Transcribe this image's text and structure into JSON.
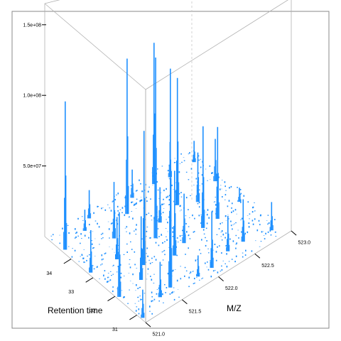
{
  "chart_data": {
    "type": "3d-spectrum",
    "title": "",
    "xlabel": "M/Z",
    "ylabel": "Retention time",
    "zlabel": "",
    "x_ticks": [
      "521.0",
      "521.5",
      "522.0",
      "522.5",
      "523.0"
    ],
    "y_ticks": [
      "31",
      "32",
      "33",
      "34"
    ],
    "z_ticks": [
      "5.0e+07",
      "1.0e+08",
      "1.5e+08"
    ],
    "xlim": [
      521.0,
      523.0
    ],
    "ylim": [
      30.6,
      35.2
    ],
    "zlim": [
      0,
      165000000
    ],
    "series_color": "#1e90ff",
    "peaks": [
      {
        "mz": 521.02,
        "rt": 30.8,
        "intensity": 20000000
      },
      {
        "mz": 521.03,
        "rt": 31.9,
        "intensity": 60000000
      },
      {
        "mz": 521.03,
        "rt": 33.2,
        "intensity": 30000000
      },
      {
        "mz": 521.04,
        "rt": 34.4,
        "intensity": 105000000
      },
      {
        "mz": 521.35,
        "rt": 31.1,
        "intensity": 25000000
      },
      {
        "mz": 521.36,
        "rt": 32.0,
        "intensity": 45000000
      },
      {
        "mz": 521.36,
        "rt": 33.1,
        "intensity": 30000000
      },
      {
        "mz": 521.37,
        "rt": 34.6,
        "intensity": 15000000
      },
      {
        "mz": 521.52,
        "rt": 31.2,
        "intensity": 155000000
      },
      {
        "mz": 521.52,
        "rt": 32.4,
        "intensity": 95000000
      },
      {
        "mz": 521.53,
        "rt": 33.8,
        "intensity": 40000000
      },
      {
        "mz": 521.52,
        "rt": 34.9,
        "intensity": 20000000
      },
      {
        "mz": 521.84,
        "rt": 31.0,
        "intensity": 15000000
      },
      {
        "mz": 521.85,
        "rt": 32.1,
        "intensity": 60000000
      },
      {
        "mz": 521.86,
        "rt": 33.0,
        "intensity": 128000000
      },
      {
        "mz": 521.86,
        "rt": 34.3,
        "intensity": 110000000
      },
      {
        "mz": 522.03,
        "rt": 31.0,
        "intensity": 40000000
      },
      {
        "mz": 522.04,
        "rt": 32.3,
        "intensity": 35000000
      },
      {
        "mz": 522.04,
        "rt": 33.4,
        "intensity": 25000000
      },
      {
        "mz": 522.05,
        "rt": 34.7,
        "intensity": 20000000
      },
      {
        "mz": 522.31,
        "rt": 31.2,
        "intensity": 25000000
      },
      {
        "mz": 522.33,
        "rt": 32.4,
        "intensity": 72000000
      },
      {
        "mz": 522.34,
        "rt": 33.6,
        "intensity": 90000000
      },
      {
        "mz": 522.35,
        "rt": 34.7,
        "intensity": 100000000
      },
      {
        "mz": 522.52,
        "rt": 31.2,
        "intensity": 30000000
      },
      {
        "mz": 522.53,
        "rt": 32.4,
        "intensity": 65000000
      },
      {
        "mz": 522.53,
        "rt": 33.3,
        "intensity": 35000000
      },
      {
        "mz": 522.54,
        "rt": 34.6,
        "intensity": 25000000
      },
      {
        "mz": 522.85,
        "rt": 31.0,
        "intensity": 20000000
      },
      {
        "mz": 522.86,
        "rt": 32.5,
        "intensity": 10000000
      },
      {
        "mz": 522.86,
        "rt": 33.6,
        "intensity": 30000000
      },
      {
        "mz": 522.87,
        "rt": 34.6,
        "intensity": 15000000
      }
    ]
  }
}
